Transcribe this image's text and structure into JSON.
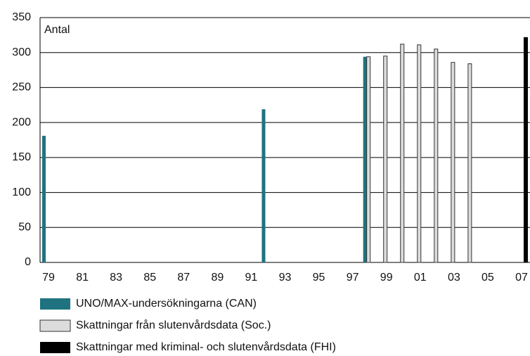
{
  "chart_data": {
    "type": "bar",
    "ylabel": "Antal",
    "categories": [
      "79",
      null,
      "81",
      null,
      "83",
      null,
      "85",
      null,
      "87",
      null,
      "89",
      null,
      "91",
      null,
      "93",
      null,
      "95",
      null,
      "97",
      null,
      "99",
      null,
      "01",
      null,
      "03",
      null,
      "05",
      null,
      "07"
    ],
    "series": [
      {
        "name": "UNO/MAX-undersökningarna (CAN)",
        "color": "#1f7380",
        "values": [
          181,
          null,
          null,
          null,
          null,
          null,
          null,
          null,
          null,
          null,
          null,
          null,
          null,
          219,
          null,
          null,
          null,
          null,
          null,
          294,
          null,
          null,
          null,
          null,
          null,
          null,
          null,
          null,
          null
        ]
      },
      {
        "name": "Skattningar från slutenvårdsdata (Soc.)",
        "color": "#dcdcdc",
        "values": [
          null,
          null,
          null,
          null,
          null,
          null,
          null,
          null,
          null,
          null,
          null,
          null,
          null,
          null,
          null,
          null,
          null,
          null,
          null,
          294,
          295,
          312,
          311,
          305,
          286,
          284,
          null,
          null,
          null
        ]
      },
      {
        "name": "Skattningar med kriminal- och slutenvårdsdata (FHI)",
        "color": "#000000",
        "values": [
          null,
          null,
          null,
          null,
          null,
          null,
          null,
          null,
          null,
          null,
          null,
          null,
          null,
          null,
          null,
          null,
          null,
          null,
          null,
          null,
          null,
          null,
          null,
          null,
          null,
          null,
          null,
          null,
          322
        ]
      }
    ],
    "ylim": [
      0,
      350
    ],
    "yticks": [
      0,
      50,
      100,
      150,
      200,
      250,
      300,
      350
    ],
    "grid": true
  }
}
